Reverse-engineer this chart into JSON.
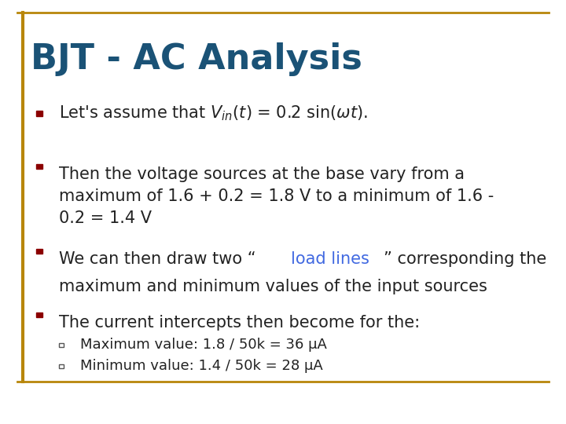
{
  "title": "BJT - AC Analysis",
  "title_color": "#1a5276",
  "title_fontsize": 32,
  "background_color": "#ffffff",
  "border_color_outer": "#b8860b",
  "border_color_inner": "#b8860b",
  "bullet_color": "#8b0000",
  "sub_bullet_color": "#555555",
  "text_color": "#222222",
  "link_color": "#4169e1",
  "bullet1": "Let’s assume that $V_{in}(t)$ = 0.2 sin(ω$t$).",
  "bullet2_line1": "Then the voltage sources at the base vary from a",
  "bullet2_line2": "maximum of 1.6 + 0.2 = 1.8 V to a minimum of 1.6 -",
  "bullet2_line3": "0.2 = 1.4 V",
  "bullet3_pre": "We can then draw two “",
  "bullet3_link": "load lines",
  "bullet3_post": "” corresponding the",
  "bullet3_line2": "maximum and minimum values of the input sources",
  "bullet4": "The current intercepts then become for the:",
  "sub1": "Maximum value: 1.8 / 50k = 36 μA",
  "sub2": "Minimum value: 1.4 / 50k = 28 μA",
  "main_fontsize": 15,
  "sub_fontsize": 13
}
